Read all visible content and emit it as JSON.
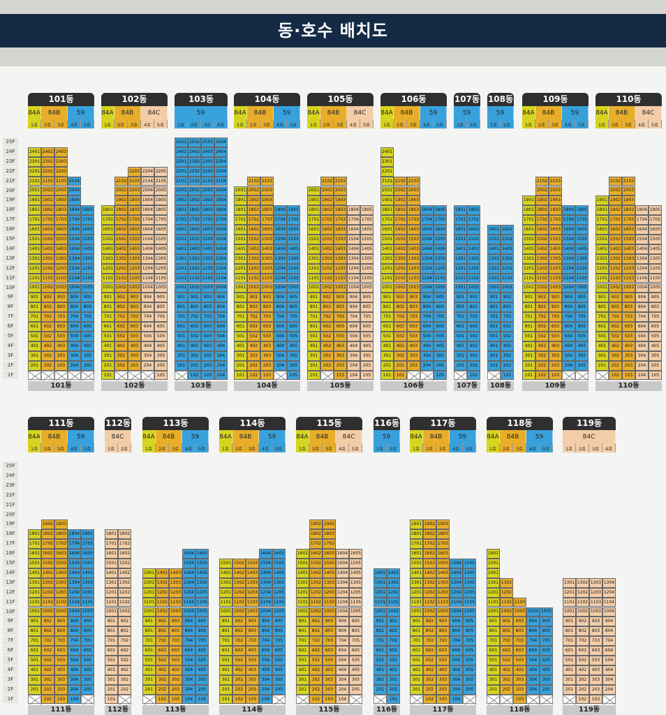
{
  "title": "동·호수 배치도",
  "colors": {
    "84A": "#d6d41e",
    "84B": "#e8ae2a",
    "59": "#38a1db",
    "84C": "#f3cda8"
  },
  "rows": [
    {
      "top": 0,
      "floor_count": 25,
      "buildings": [
        {
          "name": "101동",
          "x": 40,
          "types": [
            {
              "t": "84A",
              "u": 1
            },
            {
              "t": "84B",
              "u": 2
            },
            {
              "t": "59",
              "u": 2
            }
          ],
          "units": [
            {
              "t": "84A",
              "top": 24,
              "skip": []
            },
            {
              "t": "84B",
              "top": 24,
              "skip": []
            },
            {
              "t": "84B",
              "top": 24,
              "skip": []
            },
            {
              "t": "59",
              "top": 21,
              "skip": []
            },
            {
              "t": "59",
              "top": 18,
              "skip": []
            }
          ],
          "pilotis": [
            1,
            1,
            1,
            1,
            1
          ]
        },
        {
          "name": "102동",
          "x": 145,
          "types": [
            {
              "t": "84A",
              "u": 1
            },
            {
              "t": "84B",
              "u": 2
            },
            {
              "t": "84C",
              "u": 2
            }
          ],
          "units": [
            {
              "t": "84A",
              "top": 18,
              "skip": []
            },
            {
              "t": "84B",
              "top": 21,
              "skip": []
            },
            {
              "t": "84B",
              "top": 22,
              "skip": []
            },
            {
              "t": "84C",
              "top": 22,
              "skip": []
            },
            {
              "t": "84C",
              "top": 22,
              "skip": []
            }
          ],
          "pilotis": [
            0,
            1,
            1,
            1,
            0
          ]
        },
        {
          "name": "103동",
          "x": 250,
          "types": [
            {
              "t": "59",
              "u": 4
            }
          ],
          "units": [
            {
              "t": "59",
              "top": 25,
              "skip": []
            },
            {
              "t": "59",
              "top": 25,
              "skip": []
            },
            {
              "t": "59",
              "top": 25,
              "skip": []
            },
            {
              "t": "59",
              "top": 25,
              "skip": []
            }
          ],
          "pilotis": [
            1,
            0,
            0,
            0
          ]
        },
        {
          "name": "104동",
          "x": 335,
          "types": [
            {
              "t": "84A",
              "u": 1
            },
            {
              "t": "84B",
              "u": 2
            },
            {
              "t": "59",
              "u": 2
            }
          ],
          "units": [
            {
              "t": "84A",
              "top": 20,
              "skip": []
            },
            {
              "t": "84B",
              "top": 21,
              "skip": []
            },
            {
              "t": "84B",
              "top": 21,
              "skip": []
            },
            {
              "t": "59",
              "top": 18,
              "skip": []
            },
            {
              "t": "59",
              "top": 18,
              "skip": []
            }
          ],
          "pilotis": [
            0,
            0,
            0,
            1,
            0
          ]
        },
        {
          "name": "105동",
          "x": 440,
          "types": [
            {
              "t": "84A",
              "u": 1
            },
            {
              "t": "84B",
              "u": 2
            },
            {
              "t": "84C",
              "u": 2
            }
          ],
          "units": [
            {
              "t": "84A",
              "top": 20,
              "skip": []
            },
            {
              "t": "84B",
              "top": 21,
              "skip": []
            },
            {
              "t": "84B",
              "top": 21,
              "skip": []
            },
            {
              "t": "84C",
              "top": 18,
              "skip": []
            },
            {
              "t": "84C",
              "top": 18,
              "skip": []
            }
          ],
          "pilotis": [
            0,
            1,
            0,
            0,
            0
          ]
        },
        {
          "name": "106동",
          "x": 545,
          "types": [
            {
              "t": "84A",
              "u": 1
            },
            {
              "t": "84B",
              "u": 2
            },
            {
              "t": "59",
              "u": 2
            }
          ],
          "units": [
            {
              "t": "84A",
              "top": 24,
              "skip": []
            },
            {
              "t": "84B",
              "top": 21,
              "skip": []
            },
            {
              "t": "84B",
              "top": 21,
              "skip": []
            },
            {
              "t": "59",
              "top": 18,
              "skip": []
            },
            {
              "t": "59",
              "top": 18,
              "skip": []
            }
          ],
          "pilotis": [
            0,
            0,
            1,
            1,
            0
          ]
        },
        {
          "name": "107동",
          "x": 650,
          "types": [
            {
              "t": "59",
              "u": 2
            }
          ],
          "units": [
            {
              "t": "59",
              "top": 18,
              "skip": []
            },
            {
              "t": "59",
              "top": 18,
              "skip": []
            }
          ],
          "pilotis": [
            1,
            0
          ]
        },
        {
          "name": "108동",
          "x": 698,
          "types": [
            {
              "t": "59",
              "u": 2
            }
          ],
          "units": [
            {
              "t": "59",
              "top": 16,
              "skip": []
            },
            {
              "t": "59",
              "top": 16,
              "skip": []
            }
          ],
          "pilotis": [
            1,
            0
          ]
        },
        {
          "name": "109동",
          "x": 748,
          "types": [
            {
              "t": "84A",
              "u": 1
            },
            {
              "t": "84B",
              "u": 2
            },
            {
              "t": "59",
              "u": 2
            }
          ],
          "units": [
            {
              "t": "84A",
              "top": 19,
              "skip": []
            },
            {
              "t": "84B",
              "top": 21,
              "skip": []
            },
            {
              "t": "84B",
              "top": 21,
              "skip": []
            },
            {
              "t": "59",
              "top": 18,
              "skip": []
            },
            {
              "t": "59",
              "top": 18,
              "skip": []
            }
          ],
          "pilotis": [
            0,
            0,
            0,
            1,
            1
          ]
        },
        {
          "name": "110동",
          "x": 853,
          "types": [
            {
              "t": "84A",
              "u": 1
            },
            {
              "t": "84B",
              "u": 2
            },
            {
              "t": "84C",
              "u": 2
            }
          ],
          "units": [
            {
              "t": "84A",
              "top": 19,
              "skip": []
            },
            {
              "t": "84B",
              "top": 21,
              "skip": []
            },
            {
              "t": "84B",
              "top": 21,
              "skip": []
            },
            {
              "t": "84C",
              "top": 18,
              "skip": []
            },
            {
              "t": "84C",
              "top": 18,
              "skip": []
            }
          ],
          "pilotis": [
            1,
            0,
            0,
            0,
            0
          ]
        }
      ]
    },
    {
      "top": 464,
      "floor_count": 25,
      "buildings": [
        {
          "name": "111동",
          "x": 40,
          "types": [
            {
              "t": "84A",
              "u": 1
            },
            {
              "t": "84B",
              "u": 2
            },
            {
              "t": "59",
              "u": 2
            }
          ],
          "units": [
            {
              "t": "84A",
              "top": 18,
              "skip": []
            },
            {
              "t": "84B",
              "top": 19,
              "skip": []
            },
            {
              "t": "84B",
              "top": 19,
              "skip": []
            },
            {
              "t": "59",
              "top": 18,
              "skip": []
            },
            {
              "t": "59",
              "top": 18,
              "skip": []
            }
          ],
          "pilotis": [
            1,
            0,
            0,
            0,
            1
          ]
        },
        {
          "name": "112동",
          "x": 150,
          "types": [
            {
              "t": "84C",
              "u": 2
            }
          ],
          "units": [
            {
              "t": "84C",
              "top": 18,
              "skip": []
            },
            {
              "t": "84C",
              "top": 18,
              "skip": []
            }
          ],
          "pilotis": [
            0,
            1
          ]
        },
        {
          "name": "113동",
          "x": 204,
          "types": [
            {
              "t": "84A",
              "u": 1
            },
            {
              "t": "84B",
              "u": 2
            },
            {
              "t": "59",
              "u": 2
            }
          ],
          "units": [
            {
              "t": "84A",
              "top": 14,
              "skip": []
            },
            {
              "t": "84B",
              "top": 14,
              "skip": []
            },
            {
              "t": "84B",
              "top": 14,
              "skip": []
            },
            {
              "t": "59",
              "top": 16,
              "skip": []
            },
            {
              "t": "59",
              "top": 16,
              "skip": []
            }
          ],
          "pilotis": [
            1,
            0,
            0,
            0,
            0
          ]
        },
        {
          "name": "114동",
          "x": 314,
          "types": [
            {
              "t": "84A",
              "u": 1
            },
            {
              "t": "84B",
              "u": 2
            },
            {
              "t": "59",
              "u": 2
            }
          ],
          "units": [
            {
              "t": "84A",
              "top": 15,
              "skip": []
            },
            {
              "t": "84B",
              "top": 15,
              "skip": []
            },
            {
              "t": "84B",
              "top": 15,
              "skip": []
            },
            {
              "t": "59",
              "top": 16,
              "skip": []
            },
            {
              "t": "59",
              "top": 16,
              "skip": []
            }
          ],
          "pilotis": [
            0,
            0,
            0,
            0,
            1
          ]
        },
        {
          "name": "115동",
          "x": 424,
          "types": [
            {
              "t": "84A",
              "u": 1
            },
            {
              "t": "84B",
              "u": 2
            },
            {
              "t": "84C",
              "u": 2
            }
          ],
          "units": [
            {
              "t": "84A",
              "top": 16,
              "skip": []
            },
            {
              "t": "84B",
              "top": 19,
              "skip": []
            },
            {
              "t": "84B",
              "top": 19,
              "skip": []
            },
            {
              "t": "84C",
              "top": 16,
              "skip": []
            },
            {
              "t": "84C",
              "top": 16,
              "skip": []
            }
          ],
          "pilotis": [
            1,
            0,
            0,
            0,
            1
          ]
        },
        {
          "name": "116동",
          "x": 535,
          "types": [
            {
              "t": "59",
              "u": 2
            }
          ],
          "units": [
            {
              "t": "59",
              "top": 14,
              "skip": []
            },
            {
              "t": "59",
              "top": 14,
              "skip": []
            }
          ],
          "pilotis": [
            1,
            0
          ]
        },
        {
          "name": "117동",
          "x": 587,
          "types": [
            {
              "t": "84A",
              "u": 1
            },
            {
              "t": "84B",
              "u": 2
            },
            {
              "t": "59",
              "u": 2
            }
          ],
          "units": [
            {
              "t": "84A",
              "top": 19,
              "skip": []
            },
            {
              "t": "84B",
              "top": 19,
              "skip": []
            },
            {
              "t": "84B",
              "top": 19,
              "skip": []
            },
            {
              "t": "59",
              "top": 15,
              "skip": []
            },
            {
              "t": "59",
              "top": 15,
              "skip": []
            }
          ],
          "pilotis": [
            1,
            0,
            0,
            0,
            1
          ]
        },
        {
          "name": "118동",
          "x": 697,
          "types": [
            {
              "t": "84A",
              "u": 1
            },
            {
              "t": "84B",
              "u": 2
            },
            {
              "t": "59",
              "u": 2
            }
          ],
          "units": [
            {
              "t": "84A",
              "top": 16,
              "skip": []
            },
            {
              "t": "84B",
              "top": 13,
              "skip": []
            },
            {
              "t": "84B",
              "top": 11,
              "skip": []
            },
            {
              "t": "59",
              "top": 10,
              "skip": []
            },
            {
              "t": "59",
              "top": 10,
              "skip": []
            }
          ],
          "pilotis": [
            1,
            1,
            0,
            1,
            1
          ]
        },
        {
          "name": "119동",
          "x": 806,
          "types": [
            {
              "t": "84C",
              "u": 4
            }
          ],
          "units": [
            {
              "t": "84C",
              "top": 13,
              "skip": []
            },
            {
              "t": "84C",
              "top": 13,
              "skip": []
            },
            {
              "t": "84C",
              "top": 13,
              "skip": []
            },
            {
              "t": "84C",
              "top": 13,
              "skip": []
            }
          ],
          "pilotis": [
            1,
            0,
            0,
            1
          ]
        }
      ]
    }
  ]
}
